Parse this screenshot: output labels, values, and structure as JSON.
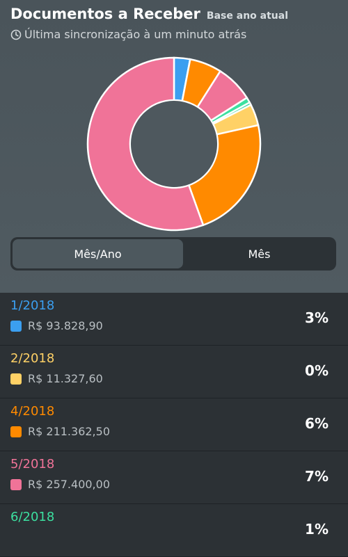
{
  "header": {
    "title": "Documentos a Receber",
    "subtitle": "Base ano atual",
    "sync_text": "Última sincronização à um minuto atrás"
  },
  "chart_data": {
    "type": "pie",
    "style": "donut",
    "categories": [
      "1/2018",
      "2/2018",
      "4/2018",
      "5/2018",
      "6/2018",
      "seg-green",
      "seg-yellow",
      "seg-orange",
      "seg-pink"
    ],
    "values": [
      3,
      0.01,
      6,
      7,
      1,
      0.5,
      4,
      23,
      55.5
    ],
    "colors": [
      "#3b9ff0",
      "#ffd166",
      "#ff8a00",
      "#f07398",
      "#3ce0a0",
      "#2bd5a0",
      "#ffd166",
      "#ff8a00",
      "#f07398"
    ]
  },
  "toggle": {
    "options": [
      "Mês/Ano",
      "Mês"
    ],
    "selected": "Mês/Ano"
  },
  "items": [
    {
      "period": "1/2018",
      "amount": "R$ 93.828,90",
      "percent": "3%",
      "color": "#3b9ff0"
    },
    {
      "period": "2/2018",
      "amount": "R$ 11.327,60",
      "percent": "0%",
      "color": "#ffd166"
    },
    {
      "period": "4/2018",
      "amount": "R$ 211.362,50",
      "percent": "6%",
      "color": "#ff8a00"
    },
    {
      "period": "5/2018",
      "amount": "R$ 257.400,00",
      "percent": "7%",
      "color": "#f07398"
    },
    {
      "period": "6/2018",
      "amount": "",
      "percent": "1%",
      "color": "#3ce0a0"
    }
  ]
}
